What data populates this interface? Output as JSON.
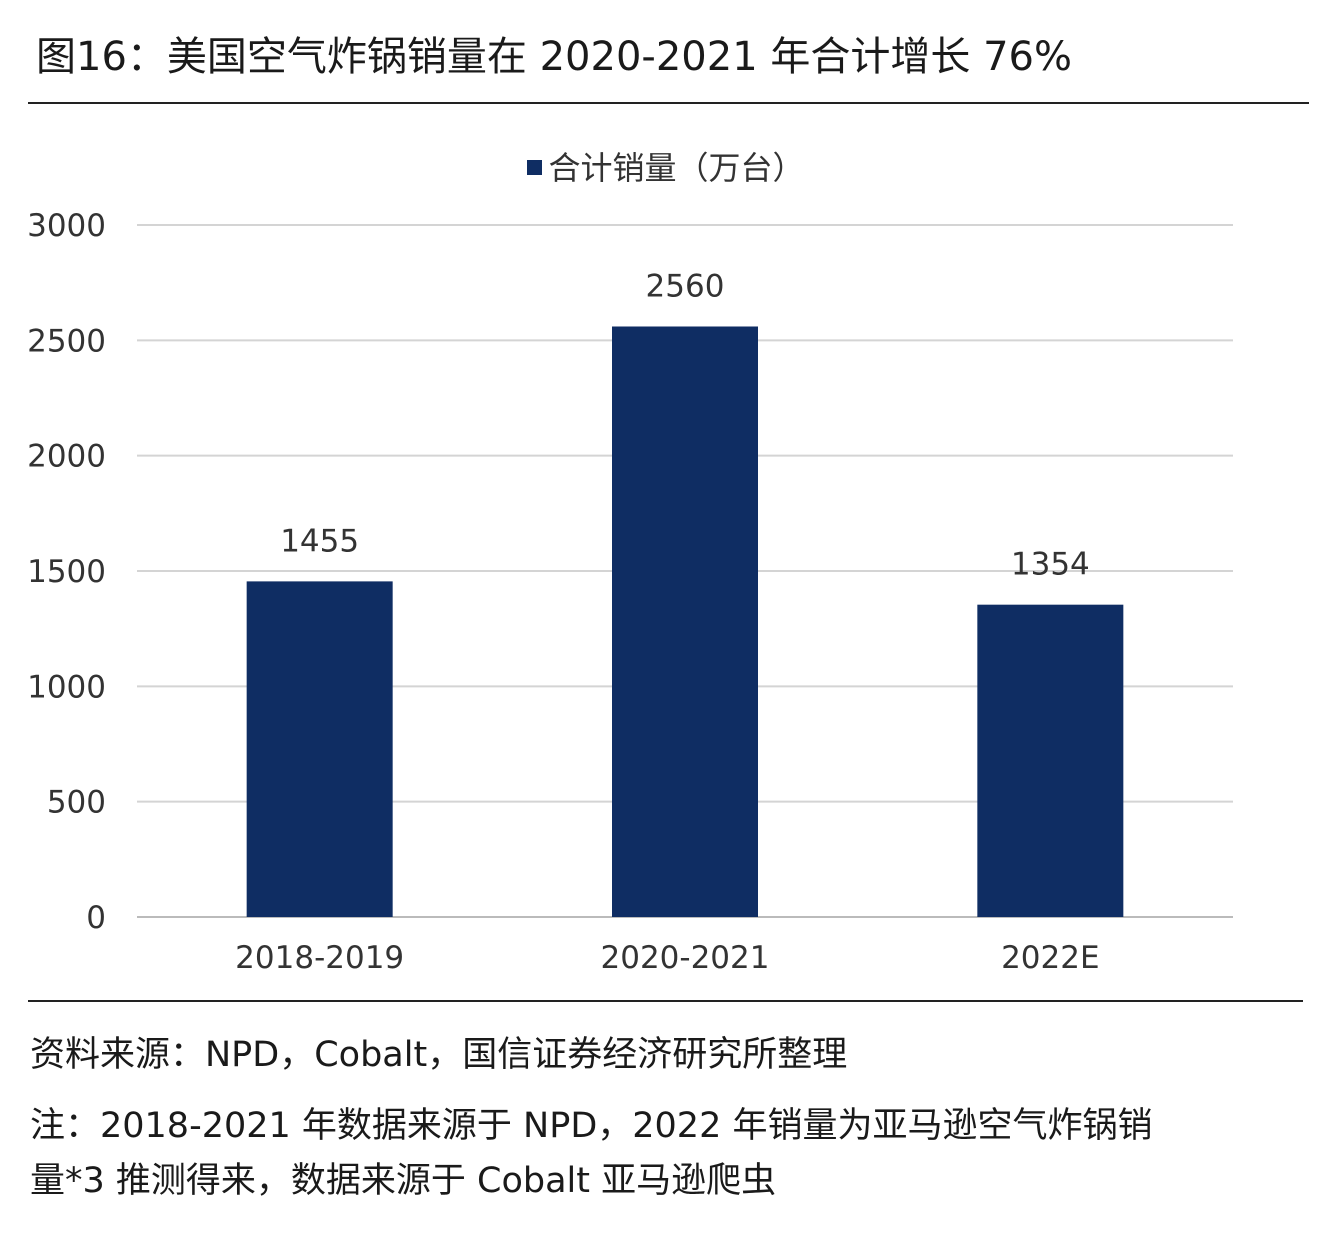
{
  "title": "图16：美国空气炸锅销量在 2020-2021 年合计增长 76%",
  "chart_data": {
    "type": "bar",
    "categories": [
      "2018-2019",
      "2020-2021",
      "2022E"
    ],
    "series": [
      {
        "name": "合计销量（万台）",
        "values": [
          1455,
          2560,
          1354
        ]
      }
    ],
    "data_labels": [
      "1455",
      "2560",
      "1354"
    ],
    "ylim": [
      0,
      3000
    ],
    "yticks": [
      0,
      500,
      1000,
      1500,
      2000,
      2500,
      3000
    ],
    "grid": true,
    "legend_position": "top",
    "bar_color": "#0f2d63",
    "xlabel": "",
    "ylabel": ""
  },
  "source": "资料来源：NPD，Cobalt，国信证券经济研究所整理",
  "note_line1": "注：2018-2021 年数据来源于 NPD，2022 年销量为亚马逊空气炸锅销",
  "note_line2": "量*3 推测得来，数据来源于 Cobalt 亚马逊爬虫"
}
